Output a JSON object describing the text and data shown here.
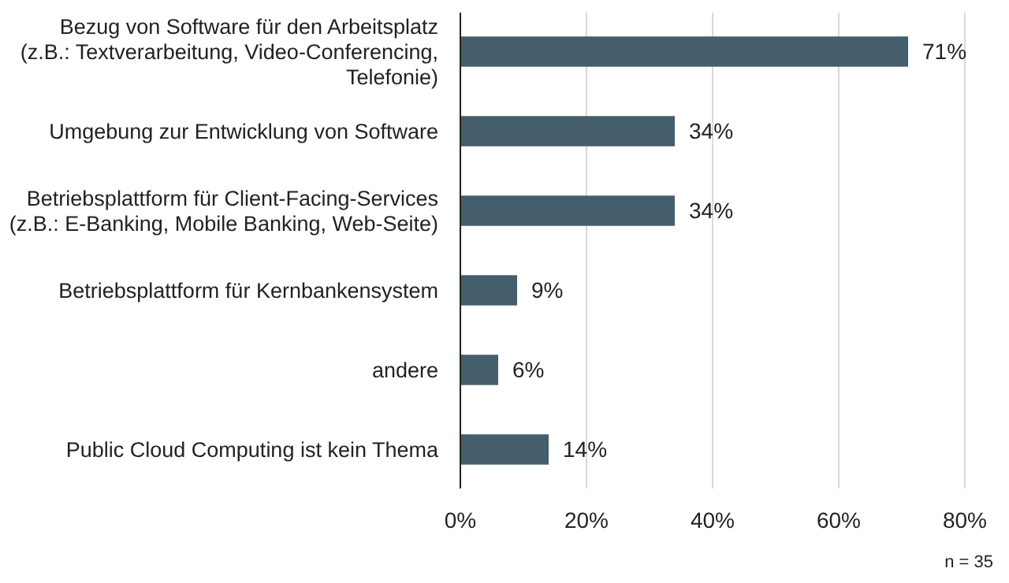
{
  "chart_data": {
    "type": "bar",
    "orientation": "horizontal",
    "categories": [
      "Bezug von Software für den Arbeitsplatz\n(z.B.: Textverarbeitung, Video-Conferencing,\nTelefonie)",
      "Umgebung zur Entwicklung von Software",
      "Betriebsplattform für Client-Facing-Services\n(z.B.: E-Banking, Mobile Banking, Web-Seite)",
      "Betriebsplattform für Kernbankensystem",
      "andere",
      "Public Cloud Computing ist kein Thema"
    ],
    "values": [
      71,
      34,
      34,
      9,
      6,
      14
    ],
    "value_labels": [
      "71%",
      "34%",
      "34%",
      "9%",
      "6%",
      "14%"
    ],
    "color": "#445e6b",
    "xlim": [
      0,
      80
    ],
    "xticks": [
      {
        "value": 0,
        "label": "0%"
      },
      {
        "value": 20,
        "label": "20%"
      },
      {
        "value": 40,
        "label": "40%"
      },
      {
        "value": 60,
        "label": "60%"
      },
      {
        "value": 80,
        "label": "80%"
      }
    ],
    "grid": "x",
    "annotations": [
      "n = 35"
    ]
  }
}
